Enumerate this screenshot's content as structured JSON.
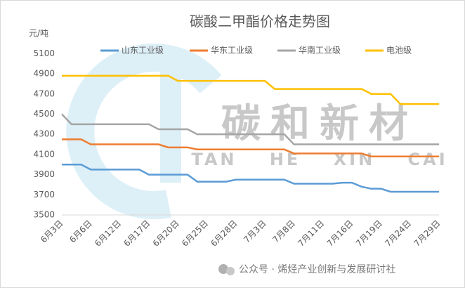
{
  "chart_data": {
    "type": "line",
    "title": "碳酸二甲酯价格走势图",
    "y_label": "元/吨",
    "categories": [
      "6月3日",
      null,
      null,
      "6月6日",
      null,
      null,
      "6月12日",
      null,
      null,
      "6月17日",
      null,
      null,
      "6月20日",
      null,
      null,
      "6月25日",
      null,
      null,
      "6月28日",
      null,
      null,
      "7月3日",
      null,
      null,
      "7月8日",
      null,
      null,
      "7月11日",
      null,
      null,
      "7月16日",
      null,
      null,
      "7月19日",
      null,
      null,
      "7月24日",
      null,
      null,
      "7月29日"
    ],
    "series": [
      {
        "name": "山东工业级",
        "color": "#5b9bd5",
        "values": [
          4000,
          4000,
          4000,
          3950,
          3950,
          3950,
          3950,
          3950,
          3950,
          3900,
          3900,
          3900,
          3900,
          3900,
          3830,
          3830,
          3830,
          3830,
          3850,
          3850,
          3850,
          3850,
          3850,
          3850,
          3810,
          3810,
          3810,
          3810,
          3810,
          3820,
          3820,
          3780,
          3760,
          3760,
          3730,
          3730,
          3730,
          3730,
          3730,
          3730
        ]
      },
      {
        "name": "华东工业级",
        "color": "#ed7d31",
        "values": [
          4250,
          4250,
          4250,
          4200,
          4200,
          4200,
          4200,
          4200,
          4200,
          4200,
          4200,
          4170,
          4170,
          4170,
          4150,
          4150,
          4150,
          4150,
          4150,
          4150,
          4150,
          4150,
          4150,
          4150,
          4110,
          4110,
          4110,
          4110,
          4110,
          4110,
          4110,
          4110,
          4080,
          4080,
          4080,
          4080,
          4080,
          4080,
          4080,
          4080
        ]
      },
      {
        "name": "华南工业级",
        "color": "#a5a5a5",
        "values": [
          4500,
          4400,
          4400,
          4400,
          4400,
          4400,
          4400,
          4400,
          4400,
          4400,
          4350,
          4350,
          4350,
          4350,
          4300,
          4300,
          4300,
          4300,
          4300,
          4300,
          4300,
          4300,
          4300,
          4300,
          4200,
          4200,
          4200,
          4200,
          4200,
          4200,
          4200,
          4200,
          4200,
          4200,
          4200,
          4200,
          4200,
          4200,
          4200,
          4200
        ]
      },
      {
        "name": "电池级",
        "color": "#ffc000",
        "values": [
          4880,
          4880,
          4880,
          4880,
          4880,
          4880,
          4880,
          4880,
          4880,
          4880,
          4880,
          4880,
          4830,
          4830,
          4830,
          4830,
          4830,
          4830,
          4830,
          4830,
          4830,
          4830,
          4750,
          4750,
          4750,
          4750,
          4750,
          4750,
          4750,
          4750,
          4750,
          4750,
          4700,
          4700,
          4700,
          4600,
          4600,
          4600,
          4600,
          4600
        ]
      }
    ],
    "ylim": [
      3500,
      5200
    ],
    "yticks": [
      3500,
      3700,
      3900,
      4100,
      4300,
      4500,
      4700,
      4900,
      5100
    ],
    "grid": false,
    "legend": "top",
    "watermark": {
      "brand": "碳和新材",
      "pinyin": "TAN HE XIN CAI"
    },
    "footer": "公众号 · 烯烃产业创新与发展研讨社"
  }
}
